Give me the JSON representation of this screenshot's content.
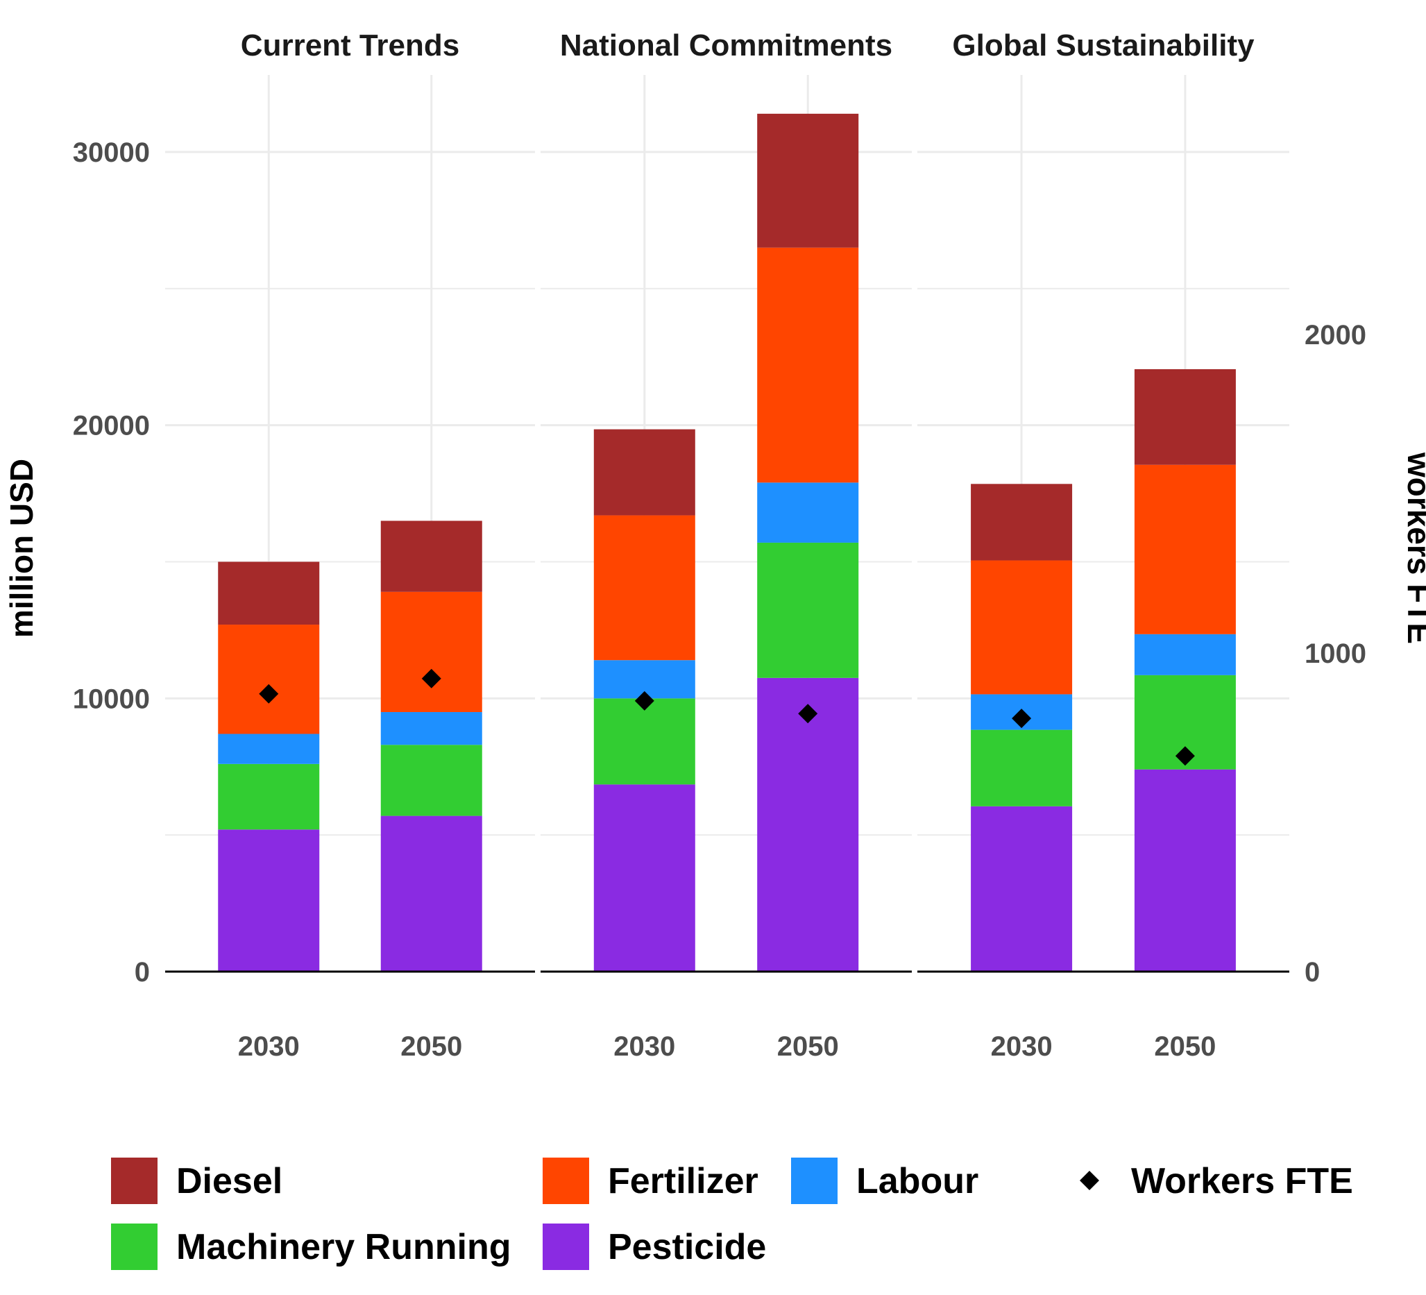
{
  "chart_data": {
    "type": "bar",
    "stacked": true,
    "panels": [
      "Current Trends",
      "National Commitments",
      "Global Sustainability"
    ],
    "categories": [
      "2030",
      "2050"
    ],
    "ylabel": "million USD",
    "y2label": "workers FTE",
    "ylim": [
      0,
      32000
    ],
    "y_ticks": [
      0,
      10000,
      20000,
      30000
    ],
    "y2lim": [
      0,
      2560
    ],
    "y2_ticks": [
      0,
      1000,
      2000
    ],
    "grid": true,
    "legend_position": "bottom",
    "series": [
      {
        "name": "Pesticide",
        "color": "#8a2be2",
        "values": [
          [
            5200,
            5700
          ],
          [
            6850,
            10750
          ],
          [
            6050,
            7400
          ]
        ]
      },
      {
        "name": "Machinery Running",
        "color": "#32cd32",
        "values": [
          [
            2400,
            2600
          ],
          [
            3150,
            4950
          ],
          [
            2800,
            3450
          ]
        ]
      },
      {
        "name": "Labour",
        "color": "#1e90ff",
        "values": [
          [
            1100,
            1200
          ],
          [
            1400,
            2200
          ],
          [
            1300,
            1500
          ]
        ]
      },
      {
        "name": "Fertilizer",
        "color": "#ff4500",
        "values": [
          [
            4000,
            4400
          ],
          [
            5300,
            8600
          ],
          [
            4900,
            6200
          ]
        ]
      },
      {
        "name": "Diesel",
        "color": "#a52a2a",
        "values": [
          [
            2300,
            2600
          ],
          [
            3150,
            4900
          ],
          [
            2800,
            3500
          ]
        ]
      }
    ],
    "points": {
      "name": "Workers FTE",
      "color": "#000000",
      "axis": "secondary",
      "values": [
        [
          872,
          920
        ],
        [
          850,
          810
        ],
        [
          795,
          677
        ]
      ]
    },
    "legend_order": [
      "Diesel",
      "Fertilizer",
      "Labour",
      "Workers FTE",
      "Machinery Running",
      "Pesticide"
    ]
  }
}
